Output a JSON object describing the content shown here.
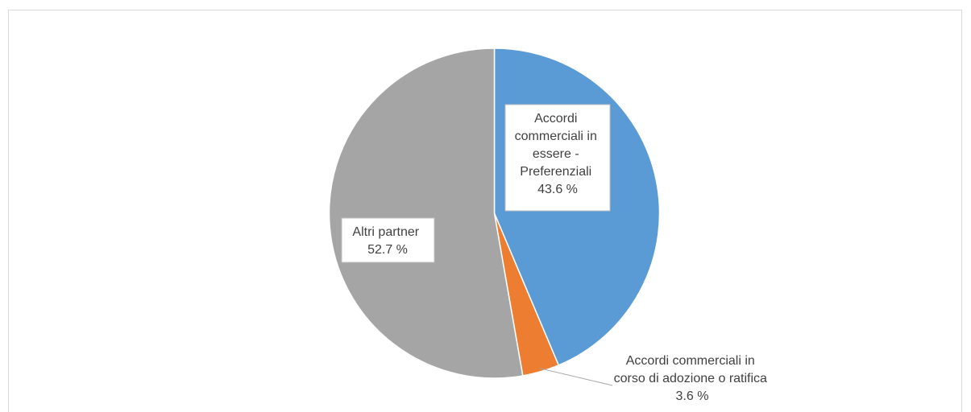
{
  "chart_data": {
    "type": "pie",
    "title": "",
    "slices": [
      {
        "name": "Accordi commerciali in essere - Preferenziali",
        "label_lines": [
          "Accordi",
          "commerciali in",
          "essere -",
          "Preferenziali"
        ],
        "value": 43.6,
        "value_label": "43.6 %",
        "color": "#5B9BD5"
      },
      {
        "name": "Accordi commerciali in corso di adozione o ratifica",
        "label_lines": [
          "Accordi commerciali in",
          "corso di adozione o ratifica"
        ],
        "value": 3.6,
        "value_label": "3.6 %",
        "color": "#ED7D31"
      },
      {
        "name": "Altri partner",
        "label_lines": [
          "Altri partner"
        ],
        "value": 52.7,
        "value_label": "52.7 %",
        "color": "#A5A5A5"
      }
    ]
  }
}
